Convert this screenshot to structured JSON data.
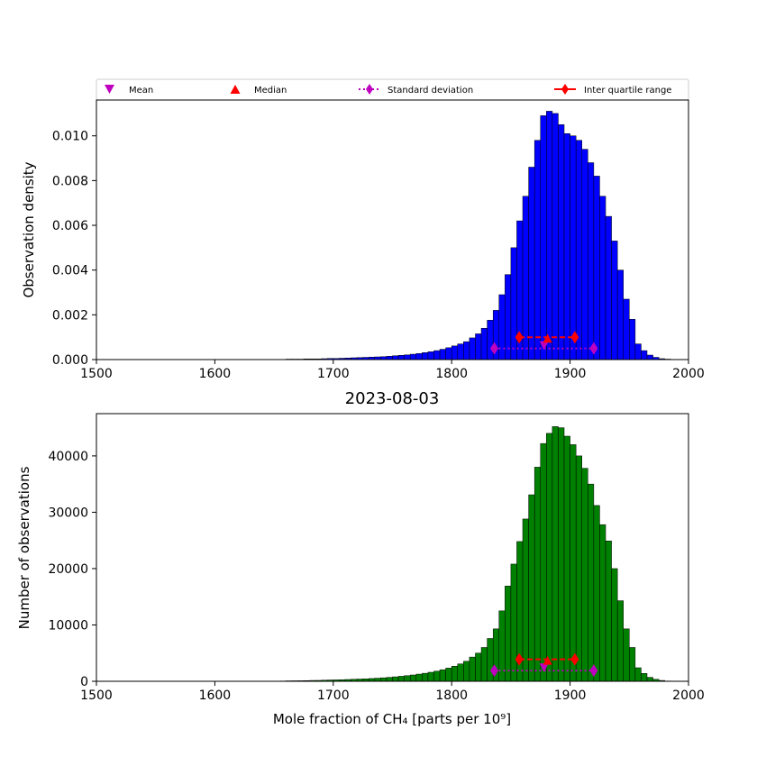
{
  "legend": {
    "placement": "top, above upper panel",
    "items": [
      {
        "label": "Mean",
        "marker": "triangle-down",
        "color": "#bf00bf"
      },
      {
        "label": "Median",
        "marker": "triangle-up",
        "color": "#ff0000"
      },
      {
        "label": "Standard deviation",
        "marker": "diamond",
        "line": "dotted",
        "color": "#bf00bf"
      },
      {
        "label": "Inter quartile range",
        "marker": "diamond",
        "line": "solid",
        "color": "#ff0000"
      }
    ]
  },
  "stats": {
    "mean": 1878,
    "median": 1881,
    "std_range": [
      1836,
      1920
    ],
    "iqr_range": [
      1857,
      1904
    ]
  },
  "chart_data": [
    {
      "type": "bar",
      "title": "",
      "xlabel": "",
      "ylabel": "Observation density",
      "xlim": [
        1500,
        2000
      ],
      "ylim": [
        0,
        0.0116
      ],
      "bar_color": "#0000ff",
      "xticks": [
        "1500",
        "1600",
        "1700",
        "1800",
        "1900",
        "2000"
      ],
      "yticks": [
        "0.000",
        "0.002",
        "0.004",
        "0.006",
        "0.008",
        "0.010"
      ],
      "ytick_values": [
        0,
        0.002,
        0.004,
        0.006,
        0.008,
        0.01
      ],
      "bin_start": 1650,
      "bin_width": 5,
      "values": [
        1e-05,
        1e-05,
        2e-05,
        2e-05,
        2e-05,
        3e-05,
        3e-05,
        3e-05,
        4e-05,
        5e-05,
        5e-05,
        6e-05,
        7e-05,
        8e-05,
        9e-05,
        0.0001,
        0.00011,
        0.00012,
        0.00013,
        0.00015,
        0.00017,
        0.00019,
        0.00021,
        0.00024,
        0.00027,
        0.00031,
        0.00035,
        0.0004,
        0.00046,
        0.00053,
        0.00061,
        0.0007,
        0.0008,
        0.00097,
        0.00115,
        0.0014,
        0.00176,
        0.0022,
        0.0029,
        0.0038,
        0.005,
        0.0062,
        0.0073,
        0.0086,
        0.0098,
        0.0109,
        0.0111,
        0.011,
        0.0105,
        0.0101,
        0.01,
        0.0098,
        0.0094,
        0.0088,
        0.0082,
        0.0073,
        0.0064,
        0.0053,
        0.004,
        0.0027,
        0.0018,
        0.0007,
        0.0004,
        0.0002,
        0.0001,
        4e-05,
        2e-05
      ]
    },
    {
      "type": "bar",
      "title": "2023-08-03",
      "xlabel": "Mole fraction of CH₄ [parts per 10⁹]",
      "ylabel": "Number of observations",
      "xlim": [
        1500,
        2000
      ],
      "ylim": [
        0,
        47500
      ],
      "bar_color": "#008000",
      "xticks": [
        "1500",
        "1600",
        "1700",
        "1800",
        "1900",
        "2000"
      ],
      "yticks": [
        "0",
        "10000",
        "20000",
        "30000",
        "40000"
      ],
      "ytick_values": [
        0,
        10000,
        20000,
        30000,
        40000
      ],
      "bin_start": 1650,
      "bin_width": 5,
      "values": [
        40,
        50,
        80,
        90,
        100,
        120,
        150,
        160,
        200,
        230,
        250,
        280,
        320,
        360,
        400,
        440,
        490,
        550,
        620,
        700,
        790,
        890,
        1000,
        1120,
        1270,
        1420,
        1600,
        1800,
        2050,
        2340,
        2680,
        3080,
        3550,
        4300,
        5000,
        6000,
        7600,
        9300,
        12500,
        16900,
        20800,
        24800,
        28800,
        33100,
        38000,
        42200,
        44000,
        45200,
        45000,
        43500,
        42000,
        40000,
        37800,
        35000,
        31200,
        27800,
        24900,
        20000,
        14300,
        9300,
        6000,
        2400,
        1400,
        700,
        350,
        150,
        50
      ]
    }
  ]
}
